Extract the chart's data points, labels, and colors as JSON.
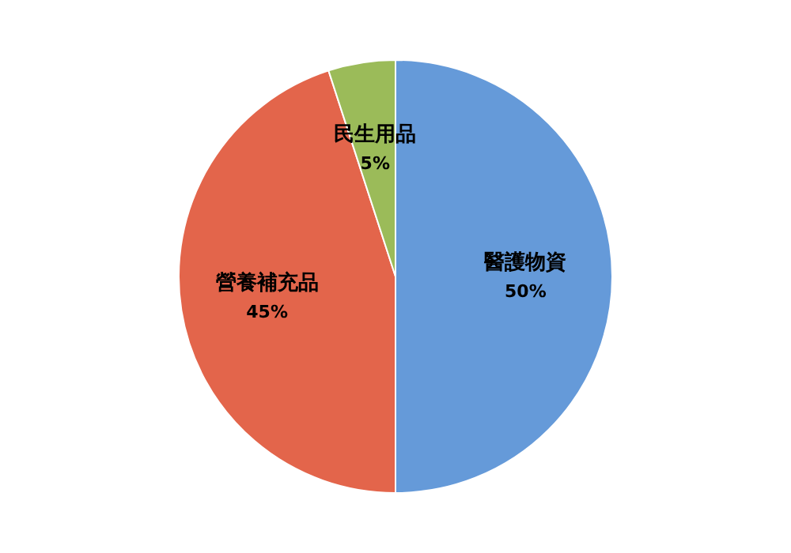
{
  "chart_data": {
    "type": "pie",
    "categories": [
      "醫護物資",
      "營養補充品",
      "民生用品"
    ],
    "values": [
      50,
      45,
      5
    ],
    "value_labels": [
      "50%",
      "45%",
      "5%"
    ],
    "colors": [
      "#659ad9",
      "#e3654b",
      "#9bbb59"
    ]
  }
}
